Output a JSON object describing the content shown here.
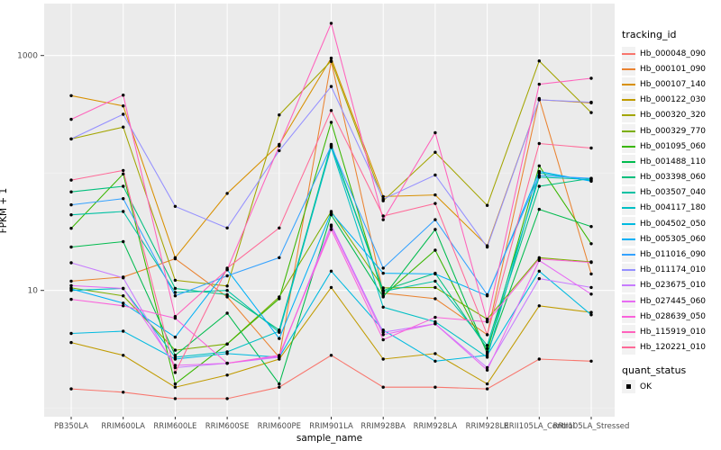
{
  "figure": {
    "background": "#FFFFFF",
    "panel_background": "#EBEBEB",
    "grid_major_color": "#FFFFFF",
    "grid_minor_color": "#F5F5F5",
    "tick_label_color": "#4D4D4D",
    "point_color": "#000000"
  },
  "chart_data": {
    "type": "line",
    "title": "",
    "xlabel": "sample_name",
    "ylabel": "FPKM + 1",
    "y_scale": "log10",
    "ylim": [
      0.84,
      2770
    ],
    "grid": true,
    "legend_position": "right",
    "y_axis_ticks": [
      {
        "label": "1000",
        "value": 1000
      },
      {
        "label": "10",
        "value": 10
      }
    ],
    "y_minor_gridlines": [
      1,
      100
    ],
    "categories": [
      "PB350LA",
      "RRIM600LA",
      "RRIM600LE",
      "RRIM600SE",
      "RRIM600PE",
      "RRIM901LA",
      "RRIM928BA",
      "RRIM928LA",
      "RRIM928LE",
      "RRII105LA_Control",
      "RRII105LA_Stressed"
    ],
    "legend": {
      "title": "tracking_id"
    },
    "legend2": {
      "title": "quant_status",
      "items": [
        "OK"
      ]
    },
    "series": [
      {
        "name": "Hb_000048_090",
        "color": "#F8766D",
        "values": [
          1.45,
          1.36,
          1.2,
          1.2,
          1.5,
          2.8,
          1.5,
          1.5,
          1.45,
          2.6,
          2.5
        ]
      },
      {
        "name": "Hb_000101_090",
        "color": "#EA8331",
        "values": [
          12,
          13,
          18.6,
          8.8,
          2.7,
          890,
          9.5,
          8.5,
          4.2,
          430,
          13.8
        ]
      },
      {
        "name": "Hb_000107_140",
        "color": "#D89000",
        "values": [
          455,
          372,
          19,
          67,
          175,
          950,
          63,
          65,
          24,
          420,
          395
        ]
      },
      {
        "name": "Hb_000122_030",
        "color": "#C09B00",
        "values": [
          3.6,
          2.8,
          1.5,
          1.9,
          2.6,
          10.6,
          2.6,
          2.9,
          1.6,
          7.4,
          6.5
        ]
      },
      {
        "name": "Hb_000320_320",
        "color": "#A3A500",
        "values": [
          195,
          246,
          12.2,
          10.9,
          312,
          900,
          58,
          150,
          53,
          900,
          327
        ]
      },
      {
        "name": "Hb_000329_770",
        "color": "#7CAE00",
        "values": [
          10.5,
          9.0,
          3.1,
          3.5,
          8.8,
          47,
          10.5,
          10.6,
          5.7,
          19,
          17.5
        ]
      },
      {
        "name": "Hb_001095_060",
        "color": "#39B600",
        "values": [
          33.8,
          98,
          1.6,
          3.5,
          8.5,
          270,
          9.0,
          22,
          3.0,
          115,
          25
        ]
      },
      {
        "name": "Hb_001488_110",
        "color": "#00BB4E",
        "values": [
          23.4,
          26,
          2.8,
          6.4,
          1.6,
          44,
          8.8,
          33,
          2.9,
          49,
          35
        ]
      },
      {
        "name": "Hb_003398_060",
        "color": "#00BF7D",
        "values": [
          69,
          77,
          10.4,
          9.2,
          4.6,
          175,
          10,
          14,
          3.2,
          77,
          90
        ]
      },
      {
        "name": "Hb_003507_040",
        "color": "#00C1A3",
        "values": [
          44,
          47,
          9.6,
          10,
          4.4,
          170,
          9.8,
          12,
          3.4,
          92,
          88
        ]
      },
      {
        "name": "Hb_004117_180",
        "color": "#00BFC4",
        "values": [
          10.0,
          10.4,
          2.7,
          3.0,
          4.5,
          165,
          7.2,
          5.4,
          2.7,
          100,
          86
        ]
      },
      {
        "name": "Hb_004502_050",
        "color": "#00BAE0",
        "values": [
          4.3,
          4.5,
          2.6,
          2.9,
          2.7,
          14.6,
          4.6,
          2.5,
          2.8,
          14.6,
          6.2
        ]
      },
      {
        "name": "Hb_005305_060",
        "color": "#00B0F6",
        "values": [
          10.3,
          7.8,
          4.0,
          15,
          3.9,
          46,
          14,
          13.8,
          9.0,
          103,
          85
        ]
      },
      {
        "name": "Hb_011016_090",
        "color": "#35A2FF",
        "values": [
          53.5,
          60.5,
          9.0,
          13.3,
          19,
          170,
          15.5,
          40,
          9.2,
          95,
          90
        ]
      },
      {
        "name": "Hb_011174_010",
        "color": "#9590FF",
        "values": [
          195,
          316,
          52,
          34,
          155,
          545,
          60,
          96,
          23.4,
          420,
          400
        ]
      },
      {
        "name": "Hb_023675_010",
        "color": "#C77CFF",
        "values": [
          17.2,
          12.8,
          2.2,
          2.4,
          2.7,
          36,
          4.4,
          5.2,
          2.2,
          12.6,
          10.6
        ]
      },
      {
        "name": "Hb_027445_060",
        "color": "#E76BF3",
        "values": [
          11,
          10.4,
          2.3,
          2.4,
          2.75,
          35,
          4.2,
          5.2,
          2.1,
          18,
          9.3
        ]
      },
      {
        "name": "Hb_028639_050",
        "color": "#FA62DB",
        "values": [
          8.4,
          7.4,
          5.8,
          2.4,
          2.8,
          33,
          3.8,
          5.9,
          5.4,
          18.5,
          17.3
        ]
      },
      {
        "name": "Hb_115919_010",
        "color": "#FF62BC",
        "values": [
          286,
          460,
          6.0,
          15,
          170,
          1880,
          40,
          220,
          5.5,
          570,
          640
        ]
      },
      {
        "name": "Hb_120221_010",
        "color": "#FF6A98",
        "values": [
          87,
          105,
          2.0,
          15.5,
          34,
          340,
          43,
          55,
          4.2,
          178,
          163
        ]
      }
    ]
  }
}
